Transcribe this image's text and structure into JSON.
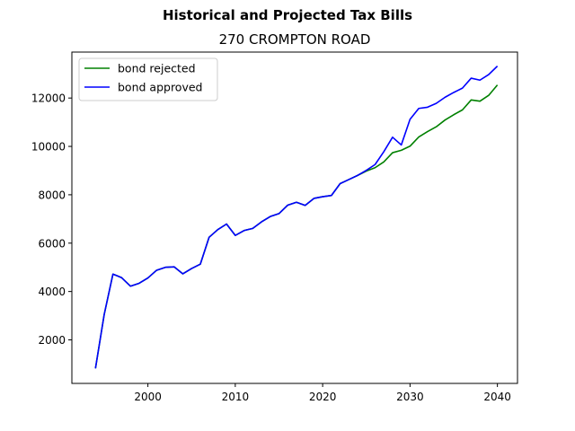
{
  "chart_data": {
    "type": "line",
    "suptitle": "Historical and Projected Tax Bills",
    "title": "270 CROMPTON ROAD",
    "xlabel": "",
    "ylabel": "",
    "xlim": [
      1991.3,
      2042.3
    ],
    "ylim": [
      200,
      13900
    ],
    "xticks": [
      2000,
      2010,
      2020,
      2030,
      2040
    ],
    "yticks": [
      2000,
      4000,
      6000,
      8000,
      10000,
      12000
    ],
    "legend_position": "upper-left",
    "grid": false,
    "x": [
      1994,
      1995,
      1996,
      1997,
      1998,
      1999,
      2000,
      2001,
      2002,
      2003,
      2004,
      2005,
      2006,
      2007,
      2008,
      2009,
      2010,
      2011,
      2012,
      2013,
      2014,
      2015,
      2016,
      2017,
      2018,
      2019,
      2020,
      2021,
      2022,
      2023,
      2024,
      2025,
      2026,
      2027,
      2028,
      2029,
      2030,
      2031,
      2032,
      2033,
      2034,
      2035,
      2036,
      2037,
      2038,
      2039,
      2040
    ],
    "series": [
      {
        "name": "bond rejected",
        "color": "#008000",
        "values": [
          820,
          3050,
          4720,
          4570,
          4220,
          4340,
          4560,
          4880,
          5000,
          5020,
          4730,
          4950,
          5130,
          6240,
          6560,
          6790,
          6320,
          6520,
          6610,
          6880,
          7100,
          7220,
          7570,
          7690,
          7560,
          7850,
          7920,
          7970,
          8460,
          8630,
          8800,
          8980,
          9120,
          9360,
          9740,
          9840,
          10010,
          10390,
          10610,
          10810,
          11090,
          11310,
          11510,
          11920,
          11870,
          12110,
          12540
        ]
      },
      {
        "name": "bond approved",
        "color": "#0000ff",
        "values": [
          820,
          3050,
          4720,
          4570,
          4220,
          4340,
          4560,
          4880,
          5000,
          5020,
          4730,
          4950,
          5130,
          6240,
          6560,
          6790,
          6320,
          6520,
          6610,
          6880,
          7100,
          7220,
          7570,
          7690,
          7560,
          7850,
          7920,
          7970,
          8460,
          8630,
          8800,
          9010,
          9250,
          9780,
          10380,
          10060,
          11120,
          11570,
          11620,
          11780,
          12030,
          12230,
          12410,
          12820,
          12740,
          12970,
          13320
        ]
      }
    ]
  }
}
